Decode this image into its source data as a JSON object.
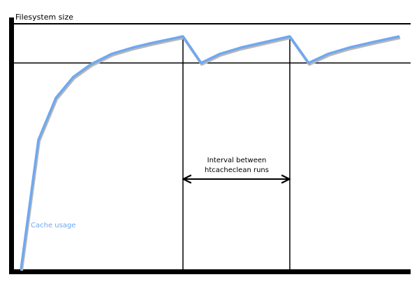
{
  "diagram": {
    "y_axis_label": "Filesystem size",
    "interval_label_line1": "Interval between",
    "interval_label_line2": "htcacheclean runs",
    "series_label": "Cache usage",
    "colors": {
      "axis": "#000000",
      "cache_line": "#6fa8f0",
      "cache_shadow": "#b8b8b8",
      "series_label": "#6fa8f0"
    }
  }
}
